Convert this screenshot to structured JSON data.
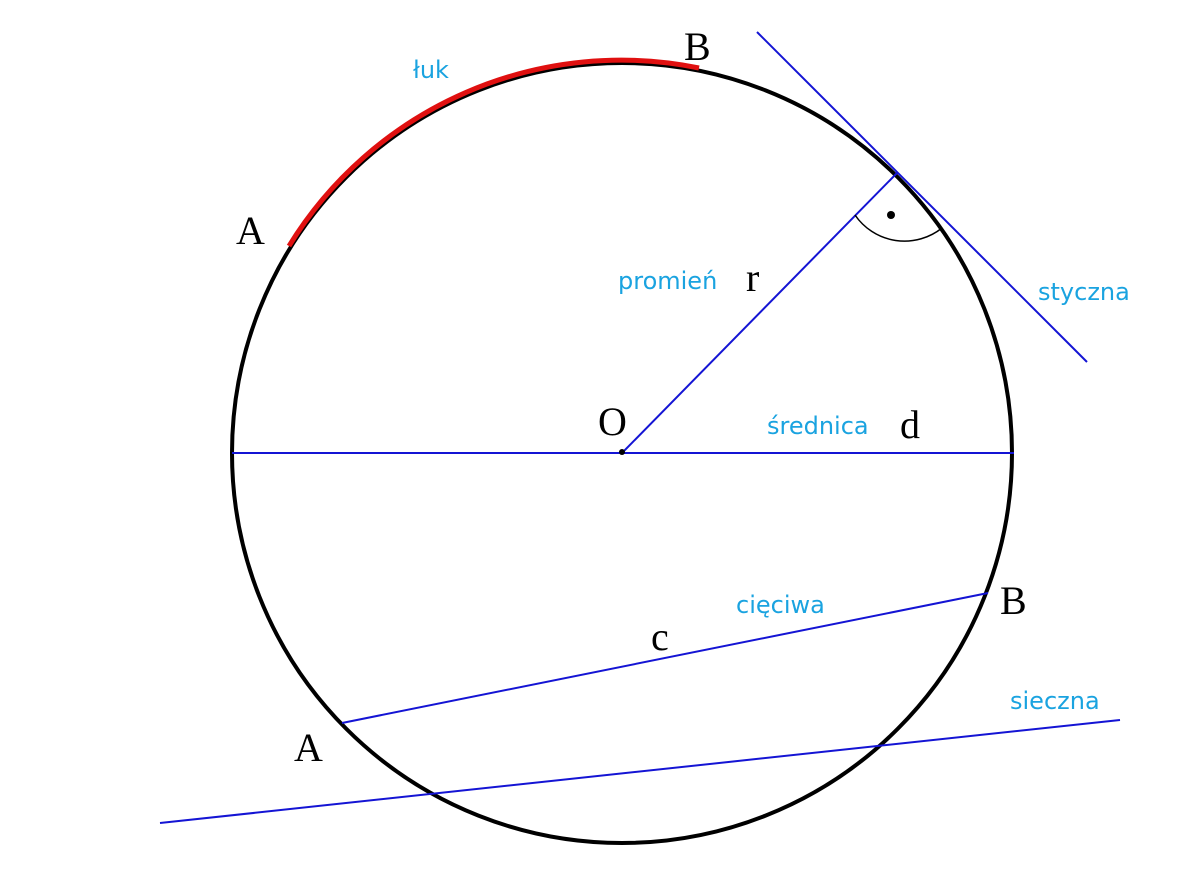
{
  "colors": {
    "background": "#ffffff",
    "circle": "#000000",
    "arc": "#e01010",
    "lines": "#1414d4",
    "term_labels": "#1aa3e0",
    "symbols": "#000000"
  },
  "terms": {
    "arc": "łuk",
    "radius": "promień",
    "diameter": "średnica",
    "tangent": "styczna",
    "chord": "cięciwa",
    "secant": "sieczna"
  },
  "symbols": {
    "arc_start": "A",
    "arc_end": "B",
    "radius": "r",
    "center": "O",
    "diameter": "d",
    "chord_start": "A",
    "chord_end": "B",
    "chord": "c"
  }
}
